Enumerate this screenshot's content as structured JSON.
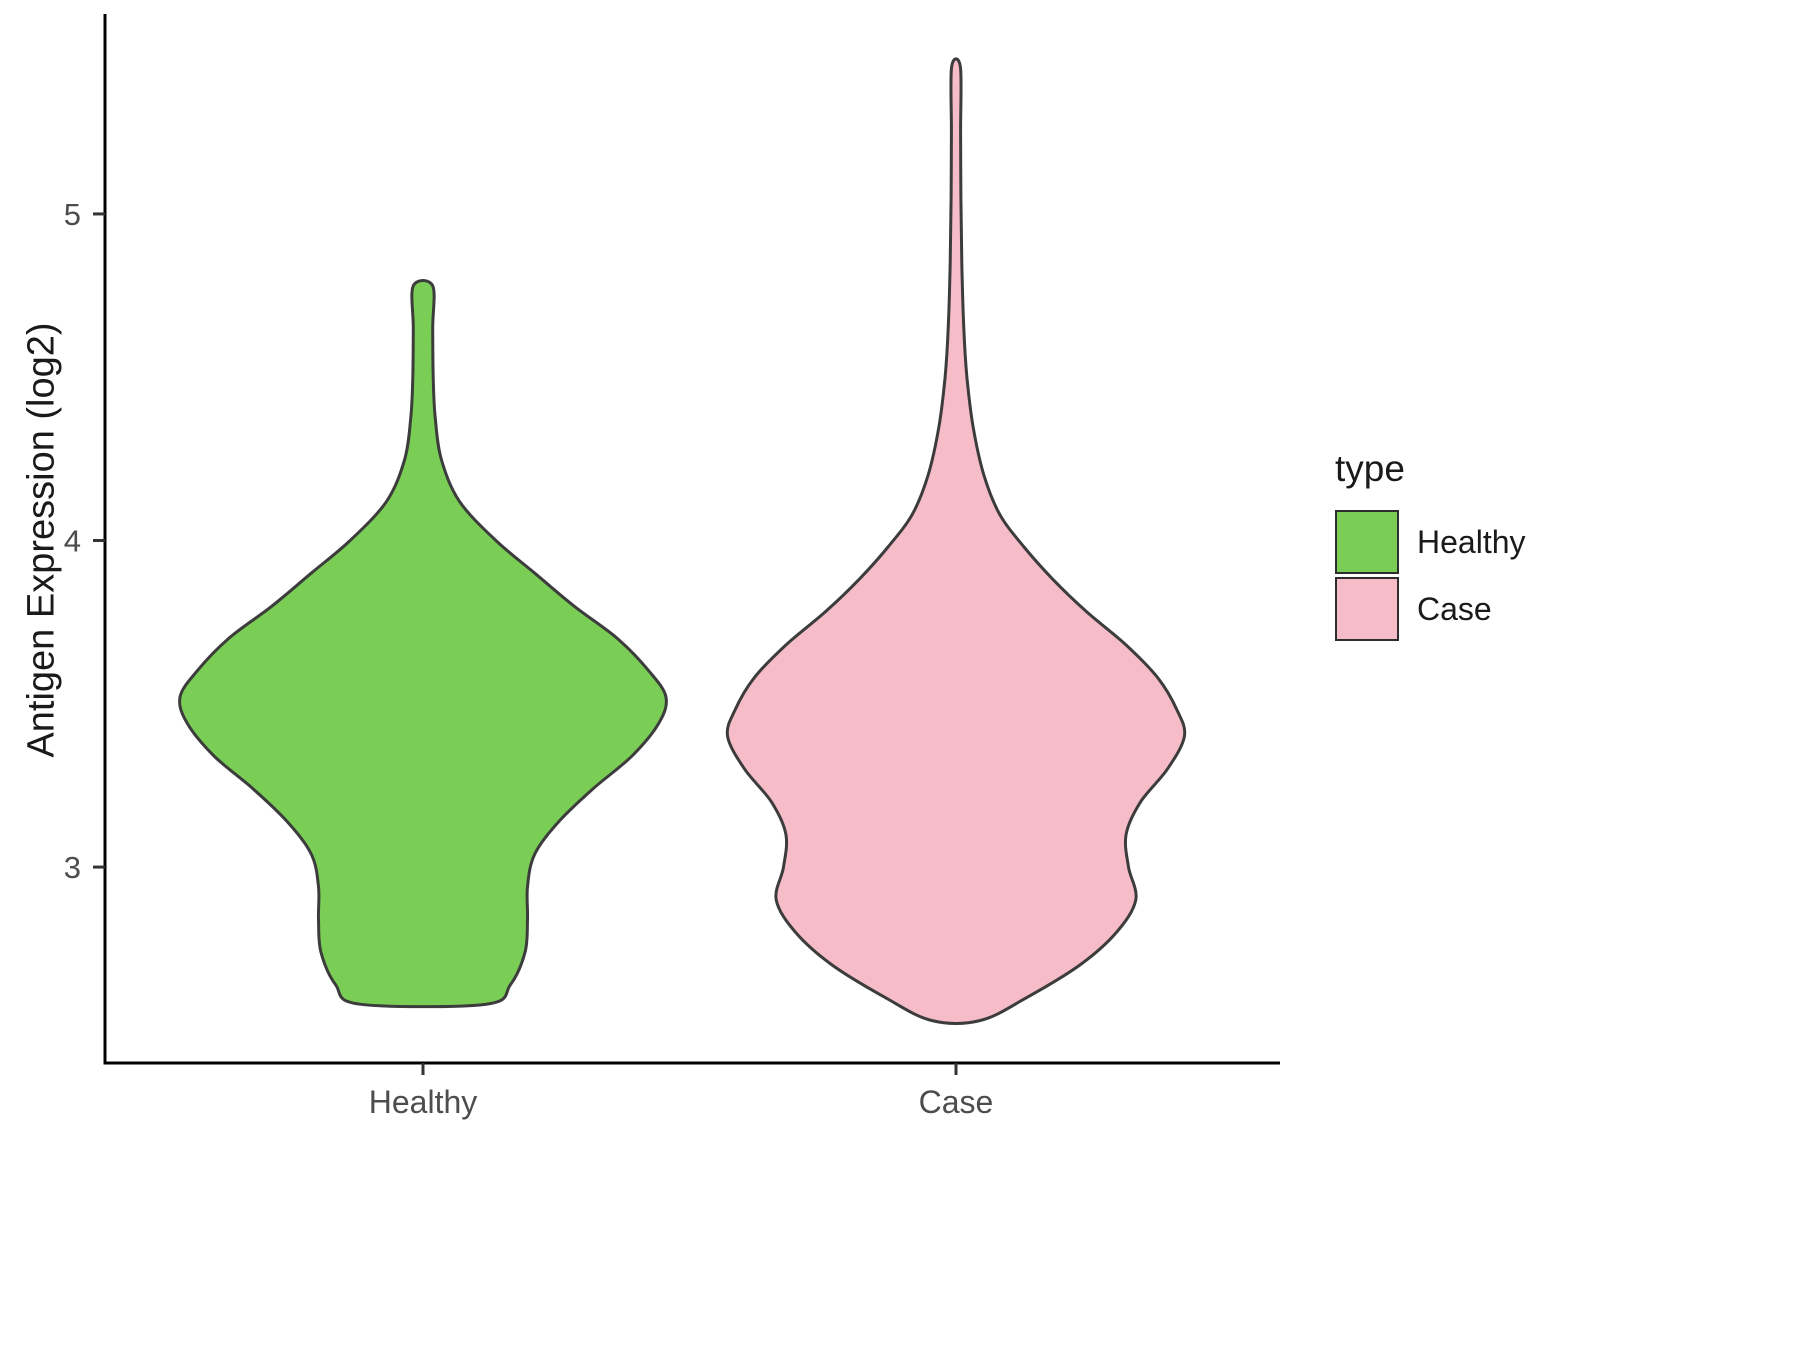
{
  "chart_data": {
    "type": "violin",
    "title": "",
    "xlabel": "",
    "ylabel": "Antigen Expression (log2)",
    "categories": [
      "Healthy",
      "Case"
    ],
    "y_ticks": [
      3,
      4,
      5
    ],
    "ylim": [
      2.4,
      5.6
    ],
    "grid": false,
    "legend": {
      "title": "type",
      "position": "right",
      "entries": [
        "Healthy",
        "Case"
      ]
    },
    "outline_color": "#3C3C3C",
    "axis_text_color": "#4D4D4D",
    "series": [
      {
        "name": "Healthy",
        "fill": "#7BCE55",
        "y_range": [
          2.58,
          4.78
        ],
        "peak_y": 3.52,
        "profile": [
          [
            4.78,
            0.04
          ],
          [
            4.65,
            0.04
          ],
          [
            4.5,
            0.042
          ],
          [
            4.38,
            0.05
          ],
          [
            4.25,
            0.075
          ],
          [
            4.12,
            0.15
          ],
          [
            4.0,
            0.3
          ],
          [
            3.9,
            0.46
          ],
          [
            3.8,
            0.62
          ],
          [
            3.7,
            0.8
          ],
          [
            3.6,
            0.93
          ],
          [
            3.52,
            1.0
          ],
          [
            3.44,
            0.97
          ],
          [
            3.34,
            0.86
          ],
          [
            3.24,
            0.7
          ],
          [
            3.14,
            0.56
          ],
          [
            3.04,
            0.46
          ],
          [
            2.94,
            0.43
          ],
          [
            2.84,
            0.43
          ],
          [
            2.74,
            0.42
          ],
          [
            2.64,
            0.36
          ],
          [
            2.58,
            0.26
          ]
        ]
      },
      {
        "name": "Case",
        "fill": "#F6BDC9",
        "y_range": [
          2.53,
          5.45
        ],
        "peak_y": 3.4,
        "profile": [
          [
            5.45,
            0.018
          ],
          [
            5.25,
            0.019
          ],
          [
            5.05,
            0.02
          ],
          [
            4.85,
            0.024
          ],
          [
            4.65,
            0.032
          ],
          [
            4.5,
            0.045
          ],
          [
            4.35,
            0.07
          ],
          [
            4.2,
            0.115
          ],
          [
            4.08,
            0.18
          ],
          [
            3.98,
            0.28
          ],
          [
            3.88,
            0.4
          ],
          [
            3.78,
            0.54
          ],
          [
            3.68,
            0.7
          ],
          [
            3.58,
            0.83
          ],
          [
            3.48,
            0.91
          ],
          [
            3.4,
            0.94
          ],
          [
            3.3,
            0.87
          ],
          [
            3.2,
            0.76
          ],
          [
            3.1,
            0.7
          ],
          [
            3.0,
            0.71
          ],
          [
            2.9,
            0.74
          ],
          [
            2.8,
            0.66
          ],
          [
            2.7,
            0.51
          ],
          [
            2.6,
            0.29
          ],
          [
            2.53,
            0.1
          ]
        ]
      }
    ]
  }
}
